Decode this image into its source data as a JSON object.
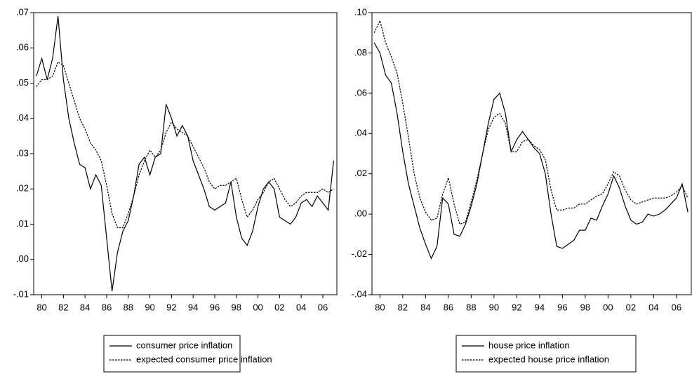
{
  "chart_data": [
    {
      "type": "line",
      "x": [
        79.5,
        80,
        80.5,
        81,
        81.5,
        82,
        82.5,
        83,
        83.5,
        84,
        84.5,
        85,
        85.5,
        86,
        86.5,
        87,
        87.5,
        88,
        88.5,
        89,
        89.5,
        90,
        90.5,
        91,
        91.5,
        92,
        92.5,
        93,
        93.5,
        94,
        94.5,
        95,
        95.5,
        96,
        96.5,
        97,
        97.5,
        98,
        98.5,
        99,
        99.5,
        100,
        100.5,
        101,
        101.5,
        102,
        102.5,
        103,
        103.5,
        104,
        104.5,
        105,
        105.5,
        106,
        106.5,
        107
      ],
      "series": [
        {
          "name": "consumer price inflation",
          "color": "#000000",
          "style": "solid",
          "values": [
            0.052,
            0.057,
            0.051,
            0.057,
            0.069,
            0.051,
            0.04,
            0.033,
            0.027,
            0.026,
            0.02,
            0.024,
            0.021,
            0.006,
            -0.009,
            0.002,
            0.008,
            0.011,
            0.018,
            0.027,
            0.029,
            0.024,
            0.029,
            0.03,
            0.044,
            0.04,
            0.035,
            0.038,
            0.035,
            0.028,
            0.024,
            0.02,
            0.015,
            0.014,
            0.015,
            0.016,
            0.022,
            0.012,
            0.006,
            0.004,
            0.008,
            0.015,
            0.02,
            0.022,
            0.02,
            0.012,
            0.011,
            0.01,
            0.012,
            0.016,
            0.017,
            0.015,
            0.018,
            0.016,
            0.014,
            0.028
          ]
        },
        {
          "name": "expected consumer price inflation",
          "color": "#000000",
          "style": "dashed",
          "values": [
            0.049,
            0.051,
            0.051,
            0.052,
            0.056,
            0.055,
            0.05,
            0.045,
            0.04,
            0.037,
            0.033,
            0.031,
            0.028,
            0.021,
            0.013,
            0.009,
            0.009,
            0.013,
            0.018,
            0.024,
            0.028,
            0.031,
            0.029,
            0.031,
            0.036,
            0.039,
            0.037,
            0.036,
            0.035,
            0.032,
            0.029,
            0.026,
            0.022,
            0.02,
            0.021,
            0.021,
            0.022,
            0.023,
            0.017,
            0.012,
            0.014,
            0.017,
            0.019,
            0.022,
            0.023,
            0.02,
            0.017,
            0.015,
            0.016,
            0.018,
            0.019,
            0.019,
            0.019,
            0.02,
            0.019,
            0.02
          ]
        }
      ],
      "xlim": [
        79.25,
        107.3
      ],
      "xticks": [
        80,
        82,
        84,
        86,
        88,
        90,
        92,
        94,
        96,
        98,
        {
          "value": 100,
          "label": "00"
        },
        {
          "value": 102,
          "label": "02"
        },
        {
          "value": 104,
          "label": "04"
        },
        {
          "value": 106,
          "label": "06"
        }
      ],
      "ylim": [
        -0.01,
        0.07
      ],
      "yticks": [
        {
          "value": -0.01,
          "label": "-.01"
        },
        {
          "value": 0,
          "label": ".00"
        },
        {
          "value": 0.01,
          "label": ".01"
        },
        {
          "value": 0.02,
          "label": ".02"
        },
        {
          "value": 0.03,
          "label": ".03"
        },
        {
          "value": 0.04,
          "label": ".04"
        },
        {
          "value": 0.05,
          "label": ".05"
        },
        {
          "value": 0.06,
          "label": ".06"
        },
        {
          "value": 0.07,
          "label": ".07"
        }
      ],
      "legend": "bottom"
    },
    {
      "type": "line",
      "x": [
        79.5,
        80,
        80.5,
        81,
        81.5,
        82,
        82.5,
        83,
        83.5,
        84,
        84.5,
        85,
        85.5,
        86,
        86.5,
        87,
        87.5,
        88,
        88.5,
        89,
        89.5,
        90,
        90.5,
        91,
        91.5,
        92,
        92.5,
        93,
        93.5,
        94,
        94.5,
        95,
        95.5,
        96,
        96.5,
        97,
        97.5,
        98,
        98.5,
        99,
        99.5,
        100,
        100.5,
        101,
        101.5,
        102,
        102.5,
        103,
        103.5,
        104,
        104.5,
        105,
        105.5,
        106,
        106.5,
        107
      ],
      "series": [
        {
          "name": "house price inflation",
          "color": "#000000",
          "style": "solid",
          "values": [
            0.085,
            0.08,
            0.069,
            0.065,
            0.05,
            0.031,
            0.015,
            0.004,
            -0.007,
            -0.015,
            -0.022,
            -0.016,
            0.008,
            0.005,
            -0.01,
            -0.011,
            -0.005,
            0.004,
            0.015,
            0.03,
            0.045,
            0.057,
            0.06,
            0.05,
            0.031,
            0.037,
            0.041,
            0.037,
            0.033,
            0.03,
            0.02,
            0.0,
            -0.016,
            -0.017,
            -0.015,
            -0.013,
            -0.008,
            -0.008,
            -0.002,
            -0.003,
            0.004,
            0.01,
            0.019,
            0.013,
            0.004,
            -0.003,
            -0.005,
            -0.004,
            0.0,
            -0.001,
            0.0,
            0.002,
            0.005,
            0.008,
            0.015,
            0.001
          ]
        },
        {
          "name": "expected house price inflation",
          "color": "#000000",
          "style": "dashed",
          "values": [
            0.09,
            0.096,
            0.085,
            0.078,
            0.07,
            0.055,
            0.038,
            0.02,
            0.008,
            0.001,
            -0.003,
            -0.002,
            0.01,
            0.018,
            0.005,
            -0.005,
            -0.004,
            0.006,
            0.017,
            0.03,
            0.042,
            0.048,
            0.05,
            0.045,
            0.031,
            0.031,
            0.036,
            0.037,
            0.034,
            0.032,
            0.027,
            0.012,
            0.002,
            0.002,
            0.003,
            0.003,
            0.005,
            0.005,
            0.007,
            0.009,
            0.01,
            0.015,
            0.021,
            0.019,
            0.012,
            0.007,
            0.005,
            0.006,
            0.007,
            0.008,
            0.008,
            0.008,
            0.009,
            0.011,
            0.014,
            0.008
          ]
        }
      ],
      "xlim": [
        79.3,
        107.3
      ],
      "xticks": [
        80,
        82,
        84,
        86,
        88,
        90,
        92,
        94,
        96,
        98,
        {
          "value": 100,
          "label": "00"
        },
        {
          "value": 102,
          "label": "02"
        },
        {
          "value": 104,
          "label": "04"
        },
        {
          "value": 106,
          "label": "06"
        }
      ],
      "ylim": [
        -0.04,
        0.1
      ],
      "yticks": [
        {
          "value": -0.04,
          "label": "-.04"
        },
        {
          "value": -0.02,
          "label": "-.02"
        },
        {
          "value": 0,
          "label": ".00"
        },
        {
          "value": 0.02,
          "label": ".02"
        },
        {
          "value": 0.04,
          "label": ".04"
        },
        {
          "value": 0.06,
          "label": ".06"
        },
        {
          "value": 0.08,
          "label": ".08"
        },
        {
          "value": 0.1,
          "label": ".10"
        }
      ],
      "legend": "bottom"
    }
  ]
}
